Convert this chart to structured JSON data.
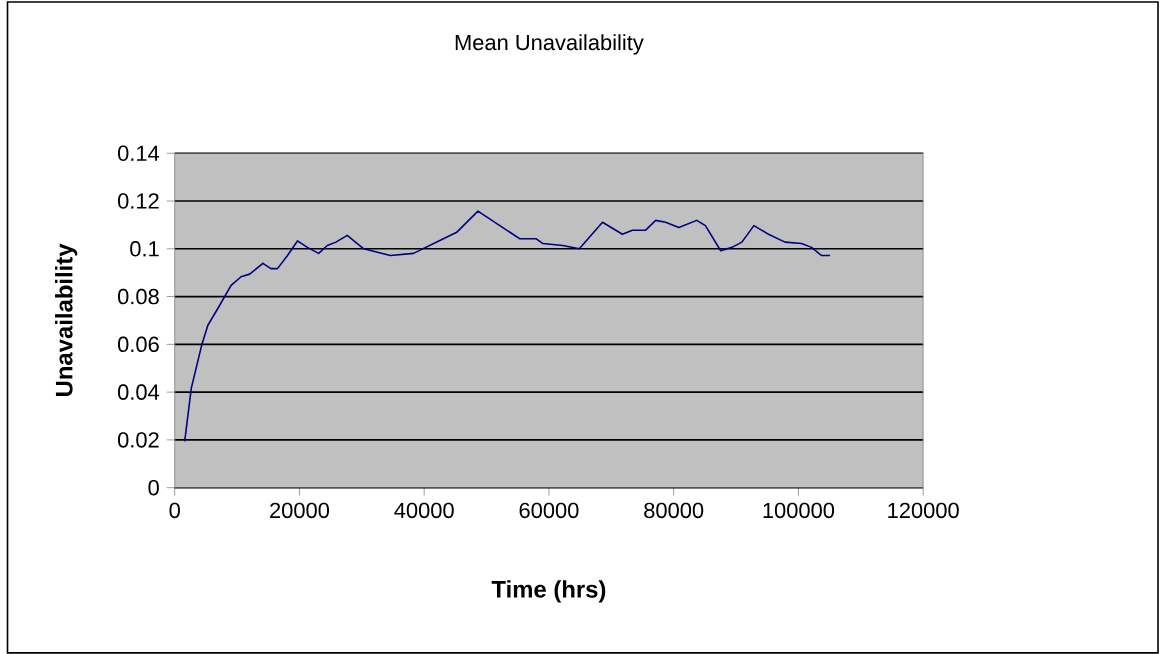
{
  "chart_data": {
    "type": "line",
    "title": "Mean Unavailability",
    "xlabel": "Time (hrs)",
    "ylabel": "Unavailability",
    "x": [
      1600,
      2660,
      4330,
      5320,
      6910,
      9040,
      10640,
      12020,
      14150,
      15420,
      16480,
      18080,
      19680,
      21270,
      23080,
      24460,
      25850,
      27660,
      30310,
      34570,
      38290,
      43080,
      45210,
      48620,
      52130,
      55320,
      57980,
      59040,
      62210,
      64870,
      68590,
      71780,
      73380,
      75510,
      77110,
      78700,
      80830,
      83700,
      85090,
      87540,
      89350,
      90940,
      92860,
      95200,
      97850,
      100510,
      102110,
      103700,
      105080
    ],
    "series": [
      {
        "color": "#000080",
        "values": [
          0.0194,
          0.0417,
          0.0597,
          0.068,
          0.075,
          0.0847,
          0.0883,
          0.0894,
          0.0939,
          0.0917,
          0.0917,
          0.0972,
          0.1033,
          0.1006,
          0.0981,
          0.1014,
          0.1028,
          0.1056,
          0.1,
          0.0972,
          0.0981,
          0.1042,
          0.1069,
          0.1158,
          0.1097,
          0.1042,
          0.1042,
          0.1022,
          0.1014,
          0.1,
          0.1111,
          0.1061,
          0.1078,
          0.1078,
          0.1119,
          0.1111,
          0.1089,
          0.1119,
          0.1097,
          0.0992,
          0.1006,
          0.1028,
          0.1097,
          0.1061,
          0.1028,
          0.1022,
          0.1006,
          0.0972,
          0.0972
        ]
      }
    ],
    "xlim": [
      0,
      120000
    ],
    "xticks": [
      0,
      20000,
      40000,
      60000,
      80000,
      100000,
      120000
    ],
    "ylim": [
      0,
      0.14
    ],
    "yticks": [
      0,
      0.02,
      0.04,
      0.06,
      0.08,
      0.1,
      0.12,
      0.14
    ],
    "grid": "y",
    "legend": false,
    "marker": "none",
    "line_style": "solid"
  }
}
